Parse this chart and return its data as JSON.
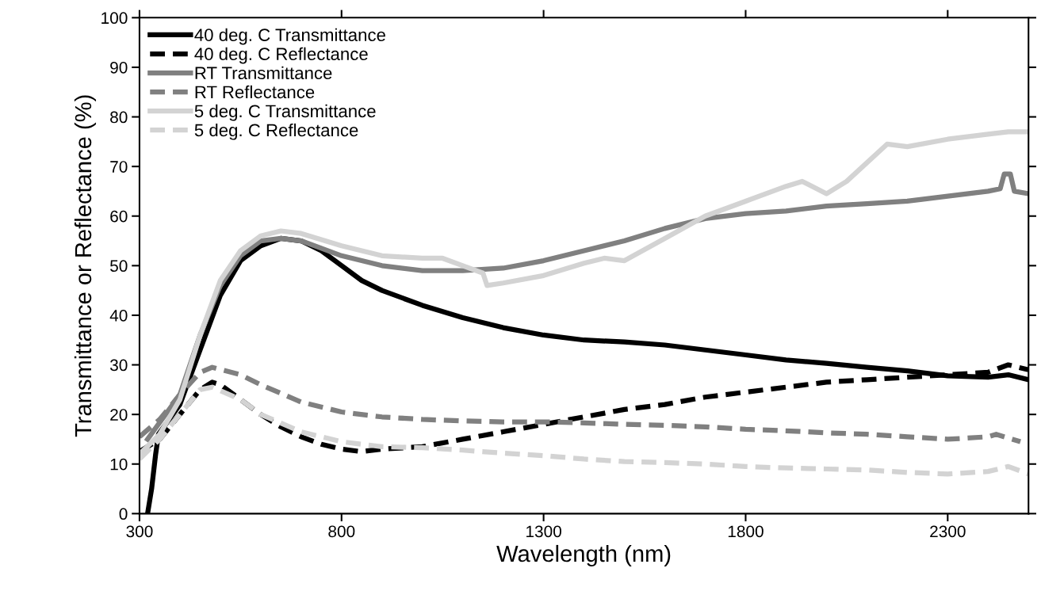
{
  "chart_data": {
    "type": "line",
    "xlabel": "Wavelength (nm)",
    "ylabel": "Transmittance or Reflectance (%)",
    "xlim": [
      300,
      2500
    ],
    "xticks": [
      300,
      800,
      1300,
      1800,
      2300
    ],
    "ylim": [
      0,
      100
    ],
    "yticks": [
      0,
      10,
      20,
      30,
      40,
      50,
      60,
      70,
      80,
      90,
      100
    ],
    "grid": false,
    "legend": "top left",
    "marker": "none",
    "series": [
      {
        "name": "40 deg. C Transmittance",
        "color": "#000000",
        "line_style": "solid",
        "x": [
          320,
          330,
          340,
          347,
          400,
          450,
          500,
          550,
          600,
          650,
          700,
          750,
          800,
          850,
          900,
          1000,
          1100,
          1200,
          1300,
          1400,
          1500,
          1600,
          1700,
          1800,
          1900,
          2000,
          2100,
          2200,
          2300,
          2400,
          2450,
          2500
        ],
        "values": [
          0,
          5,
          12,
          16,
          22,
          33,
          44,
          51,
          54,
          55.5,
          55,
          53,
          50,
          47,
          45,
          42,
          39.5,
          37.5,
          36,
          35,
          34.6,
          34,
          33,
          32,
          31,
          30.3,
          29.5,
          28.8,
          27.8,
          27.5,
          28,
          27
        ]
      },
      {
        "name": "40 deg. C Reflectance",
        "color": "#000000",
        "line_style": "dashed",
        "x": [
          300,
          350,
          400,
          450,
          480,
          500,
          550,
          600,
          650,
          700,
          750,
          800,
          850,
          900,
          1000,
          1100,
          1200,
          1300,
          1400,
          1500,
          1600,
          1700,
          1800,
          1900,
          2000,
          2100,
          2200,
          2300,
          2400,
          2450,
          2500
        ],
        "values": [
          12.5,
          15,
          20,
          25,
          26.5,
          26,
          23,
          20,
          17.5,
          15.5,
          14,
          13,
          12.5,
          13,
          13.5,
          15,
          16.5,
          18,
          19.5,
          21,
          22,
          23.5,
          24.5,
          25.5,
          26.5,
          27,
          27.5,
          28,
          28.5,
          30,
          29
        ]
      },
      {
        "name": "RT Transmittance",
        "color": "#808080",
        "line_style": "solid",
        "x": [
          320,
          400,
          450,
          500,
          550,
          600,
          650,
          700,
          750,
          800,
          900,
          1000,
          1100,
          1200,
          1300,
          1400,
          1500,
          1600,
          1700,
          1800,
          1900,
          2000,
          2100,
          2200,
          2300,
          2400,
          2430,
          2440,
          2455,
          2465,
          2500
        ],
        "values": [
          15,
          24,
          36,
          46,
          52,
          55,
          55.5,
          55,
          53.5,
          52,
          50,
          49,
          49,
          49.5,
          51,
          53,
          55,
          57.5,
          59.5,
          60.5,
          61,
          62,
          62.5,
          63,
          64,
          65,
          65.5,
          68.5,
          68.5,
          65,
          64.5
        ]
      },
      {
        "name": "RT Reflectance",
        "color": "#808080",
        "line_style": "dashed",
        "x": [
          300,
          350,
          400,
          450,
          480,
          550,
          600,
          700,
          800,
          900,
          1000,
          1100,
          1200,
          1300,
          1400,
          1500,
          1600,
          1700,
          1800,
          1900,
          2000,
          2100,
          2200,
          2300,
          2400,
          2420,
          2460,
          2480
        ],
        "values": [
          15.5,
          19,
          24,
          28.5,
          29.5,
          28,
          26,
          22.5,
          20.5,
          19.5,
          19,
          18.7,
          18.5,
          18.5,
          18.3,
          18,
          17.8,
          17.5,
          17,
          16.7,
          16.3,
          16,
          15.5,
          15,
          15.5,
          16,
          15,
          14.5
        ]
      },
      {
        "name": "5 deg. C Transmittance",
        "color": "#d3d3d3",
        "line_style": "solid",
        "x": [
          300,
          350,
          400,
          450,
          500,
          550,
          600,
          650,
          700,
          800,
          900,
          1000,
          1050,
          1100,
          1150,
          1160,
          1200,
          1300,
          1400,
          1450,
          1500,
          1600,
          1700,
          1800,
          1900,
          1940,
          2000,
          2050,
          2150,
          2200,
          2300,
          2400,
          2450,
          2500
        ],
        "values": [
          12,
          16,
          23,
          36,
          47,
          53,
          56,
          57,
          56.5,
          54,
          52,
          51.5,
          51.5,
          50,
          48.5,
          46,
          46.5,
          48,
          50.5,
          51.5,
          51,
          55.5,
          60,
          63,
          66,
          67,
          64.5,
          67,
          74.5,
          74,
          75.5,
          76.5,
          77,
          77
        ]
      },
      {
        "name": "5 deg. C Reflectance",
        "color": "#d3d3d3",
        "line_style": "dashed",
        "x": [
          300,
          350,
          400,
          450,
          480,
          550,
          600,
          700,
          800,
          900,
          1000,
          1100,
          1200,
          1300,
          1400,
          1500,
          1600,
          1700,
          1800,
          1900,
          2000,
          2100,
          2200,
          2300,
          2400,
          2450,
          2500
        ],
        "values": [
          11,
          15,
          20,
          25,
          25.5,
          23,
          20,
          16.5,
          14.5,
          13.5,
          13.3,
          12.8,
          12.2,
          11.7,
          11,
          10.5,
          10.3,
          10,
          9.5,
          9.2,
          9,
          8.8,
          8.3,
          8,
          8.5,
          9.5,
          8
        ]
      }
    ]
  }
}
